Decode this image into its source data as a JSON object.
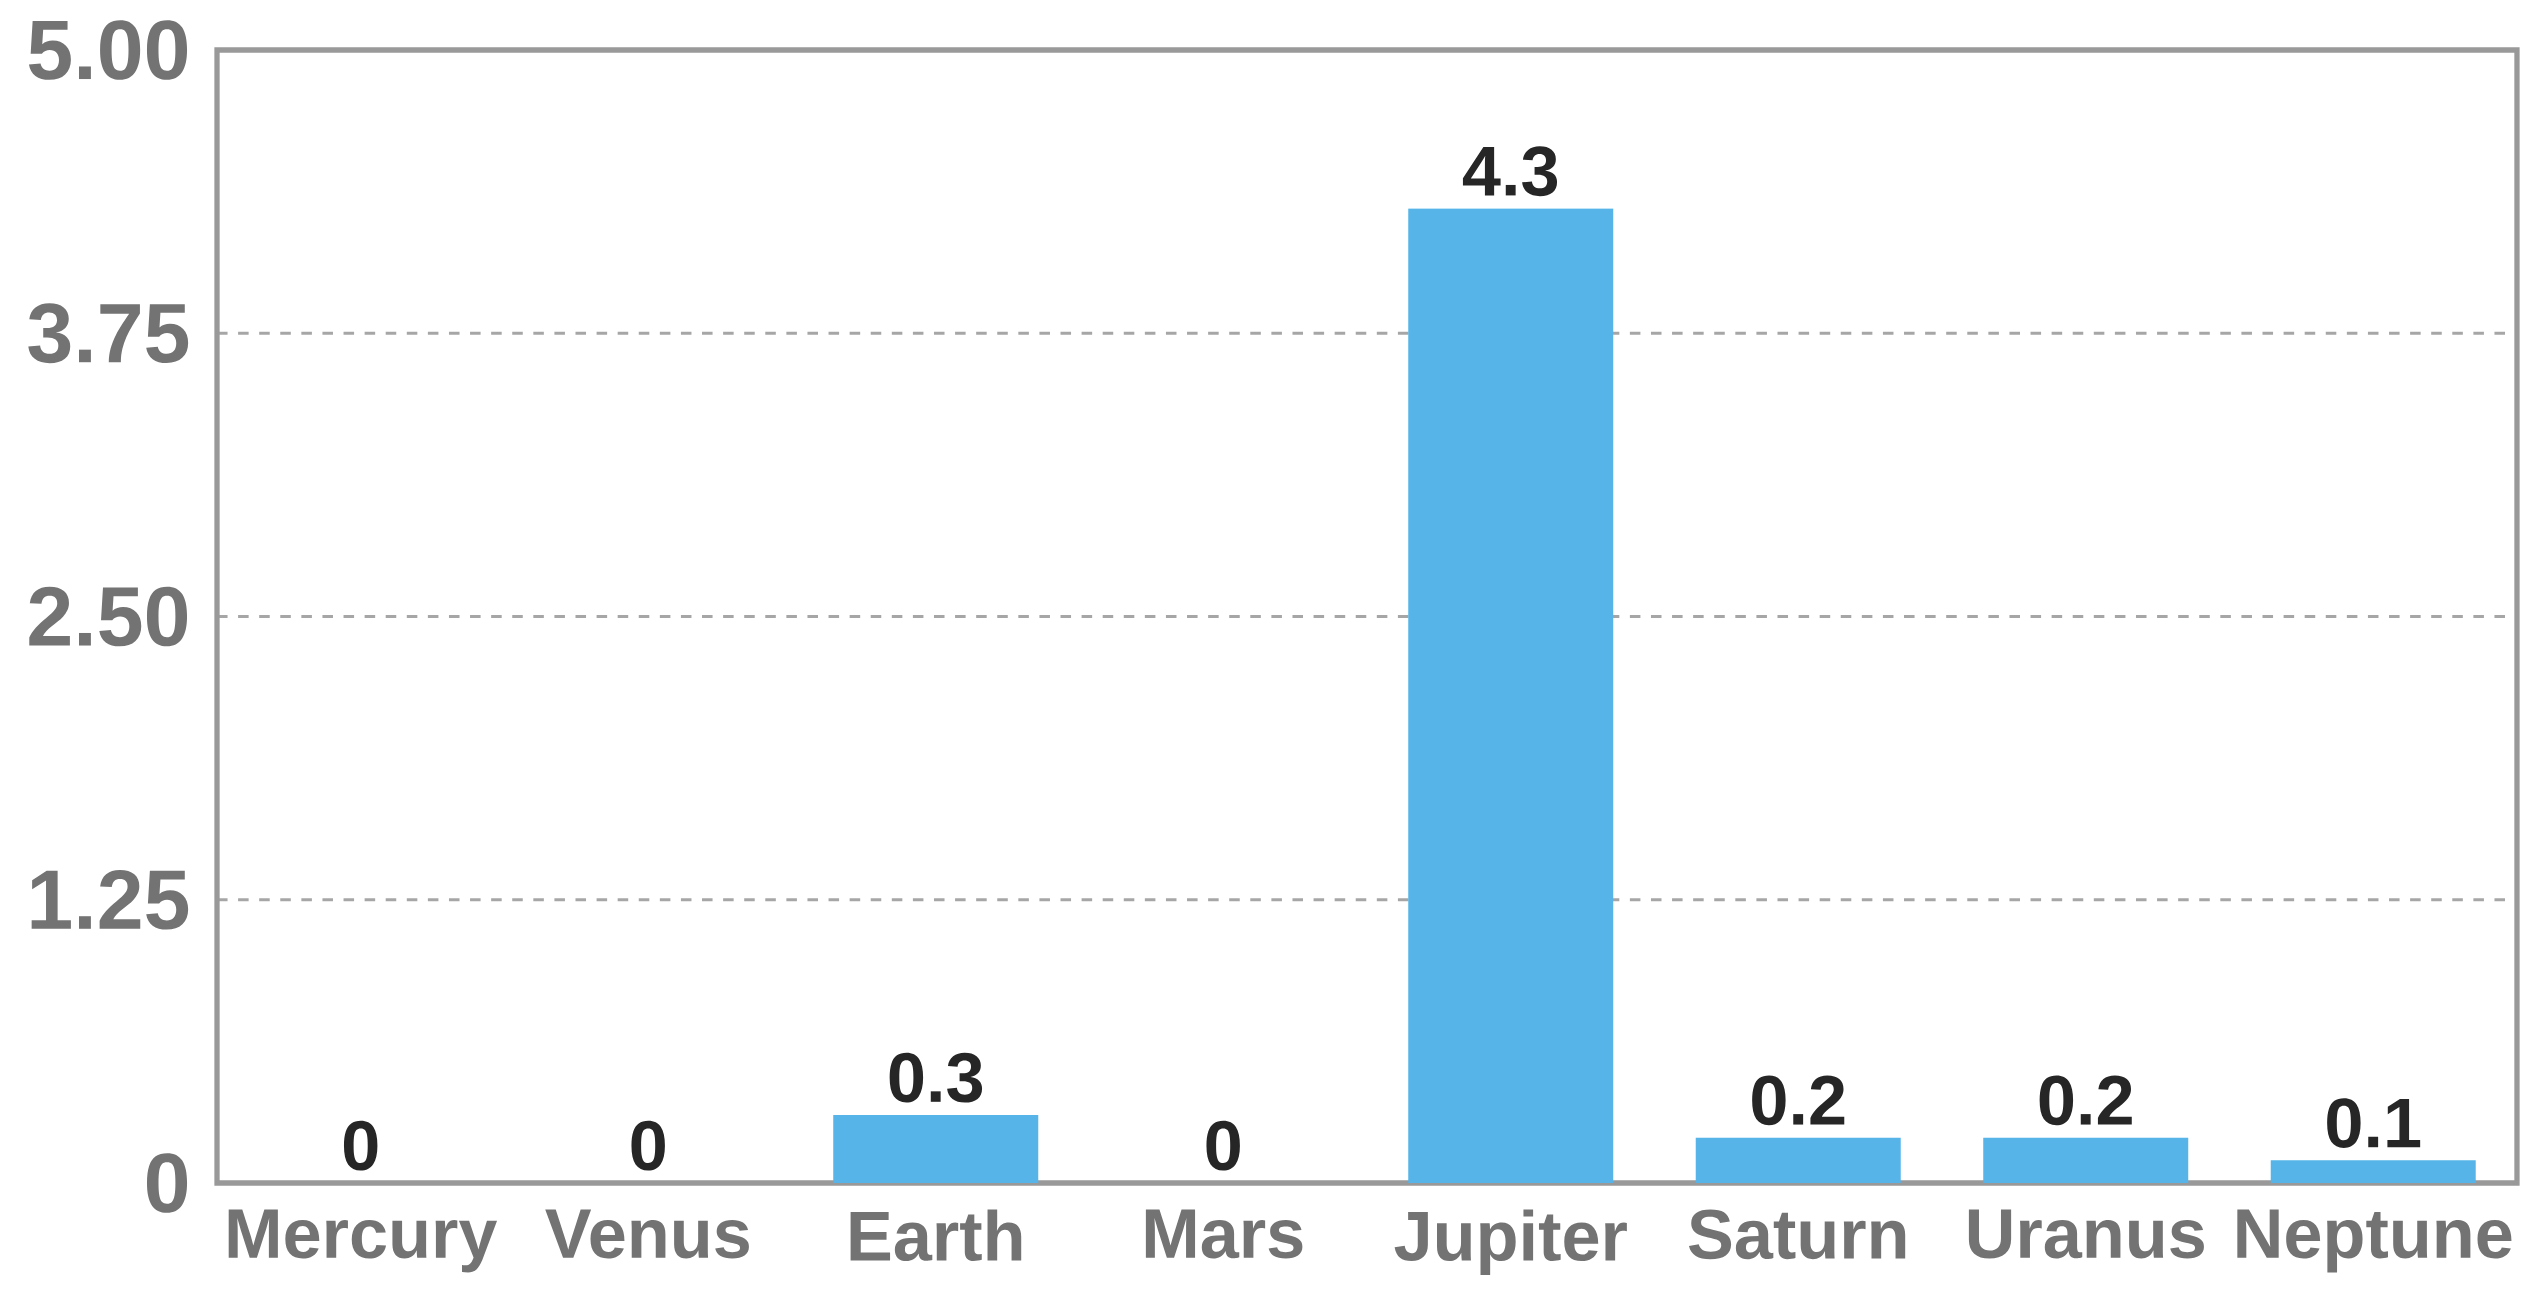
{
  "chart_data": {
    "type": "bar",
    "categories": [
      "Mercury",
      "Venus",
      "Earth",
      "Mars",
      "Jupiter",
      "Saturn",
      "Uranus",
      "Neptune"
    ],
    "values": [
      0,
      0,
      0.3,
      0,
      4.3,
      0.2,
      0.2,
      0.1
    ],
    "color": "#56b4e9",
    "ylim": [
      0,
      5
    ],
    "yticks": [
      0,
      1.25,
      {
        "value": 2.5,
        "label": "2.50"
      },
      3.75,
      {
        "value": 5,
        "label": "5.00"
      }
    ],
    "grid": "y",
    "data_labels": true
  }
}
